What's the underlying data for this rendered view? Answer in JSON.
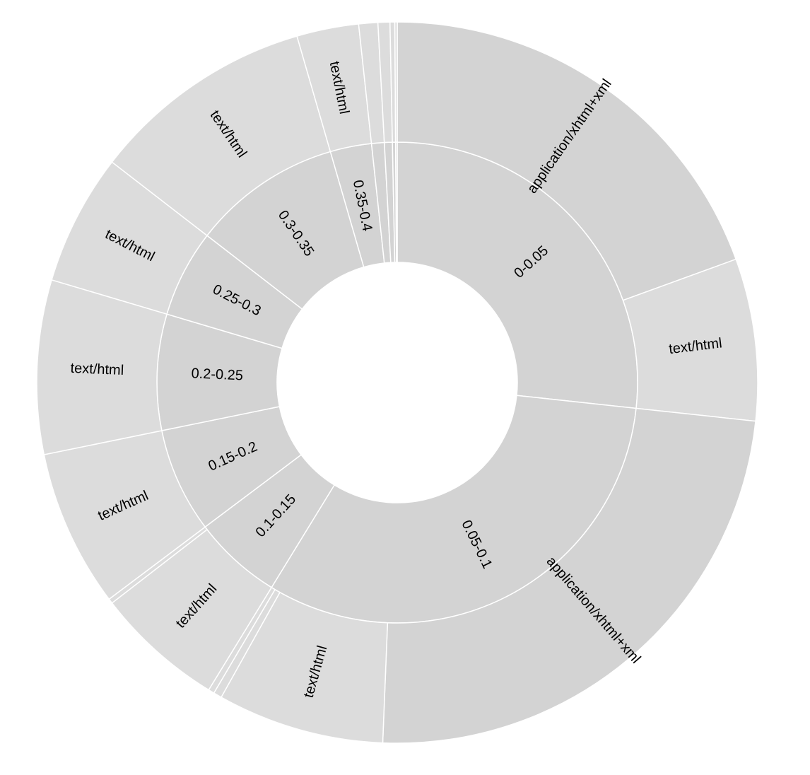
{
  "chart_data": {
    "type": "sunburst",
    "title": "",
    "colors": {
      "inner": "#d3d3d3",
      "outer_large": "#d3d3d3",
      "outer_small": "#dcdcdc",
      "stroke": "#ffffff",
      "background": "#ffffff"
    },
    "rings": [
      {
        "level": 1,
        "segments": [
          {
            "label": "0-0.05",
            "value": 25.0
          },
          {
            "label": "0.05-0.1",
            "value": 30.0
          },
          {
            "label": "0.1-0.15",
            "value": 5.6
          },
          {
            "label": "0.15-0.2",
            "value": 6.6
          },
          {
            "label": "0.2-0.25",
            "value": 7.3
          },
          {
            "label": "0.25-0.3",
            "value": 5.5
          },
          {
            "label": "0.3-0.35",
            "value": 9.4
          },
          {
            "label": "0.35-0.4",
            "value": 2.6
          },
          {
            "label": "",
            "value": 0.8
          },
          {
            "label": "",
            "value": 0.5
          },
          {
            "label": "",
            "value": 0.2
          },
          {
            "label": "",
            "value": 0.1
          }
        ]
      },
      {
        "level": 2,
        "segments": [
          {
            "label": "application/xhtml+xml",
            "parent": "0-0.05",
            "value": 18.2
          },
          {
            "label": "text/html",
            "parent": "0-0.05",
            "value": 6.8
          },
          {
            "label": "application/xhtml+xml",
            "parent": "0.05-0.1",
            "value": 22.4
          },
          {
            "label": "text/html",
            "parent": "0.05-0.1",
            "value": 7.0
          },
          {
            "label": "",
            "parent": "0.05-0.1",
            "value": 0.35
          },
          {
            "label": "",
            "parent": "0.05-0.1",
            "value": 0.25
          },
          {
            "label": "text/html",
            "parent": "0.1-0.15",
            "value": 5.4
          },
          {
            "label": "",
            "parent": "0.1-0.15",
            "value": 0.2
          },
          {
            "label": "text/html",
            "parent": "0.15-0.2",
            "value": 6.6
          },
          {
            "label": "text/html",
            "parent": "0.2-0.25",
            "value": 7.3
          },
          {
            "label": "text/html",
            "parent": "0.25-0.3",
            "value": 5.5
          },
          {
            "label": "text/html",
            "parent": "0.3-0.35",
            "value": 9.4
          },
          {
            "label": "text/html",
            "parent": "0.35-0.4",
            "value": 2.6
          },
          {
            "label": "",
            "parent": "",
            "value": 0.8
          },
          {
            "label": "",
            "parent": "",
            "value": 0.5
          },
          {
            "label": "",
            "parent": "",
            "value": 0.2
          },
          {
            "label": "",
            "parent": "",
            "value": 0.1
          }
        ]
      }
    ]
  }
}
